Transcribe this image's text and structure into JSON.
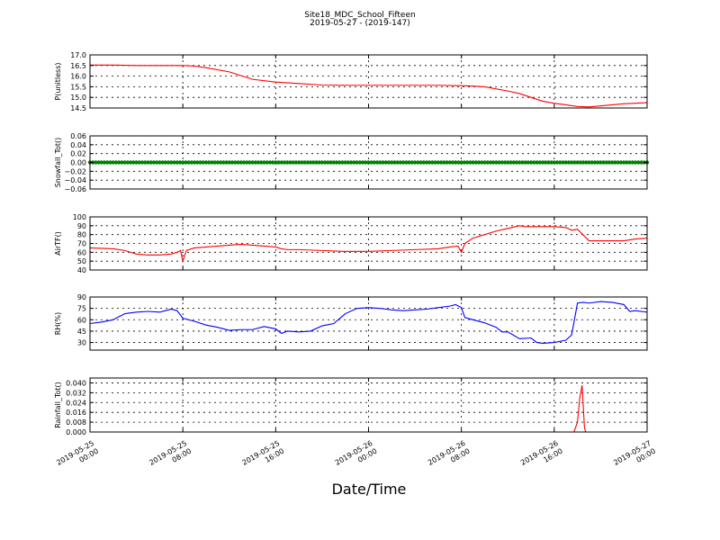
{
  "figure": {
    "title": "Site18_MDC_School_Fifteen",
    "subtitle": "2019-05-27 - (2019-147)",
    "xlabel": "Date/Time",
    "x_ticks": [
      "2019-05-25\n00:00",
      "2019-05-25\n08:00",
      "2019-05-25\n16:00",
      "2019-05-26\n00:00",
      "2019-05-26\n08:00",
      "2019-05-26\n16:00",
      "2019-05-27\n00:00"
    ]
  },
  "chart_data": [
    {
      "type": "line",
      "ylabel": "P(unitless)",
      "ylim": [
        14.5,
        17.0
      ],
      "yticks": [
        "14.5",
        "15.0",
        "15.5",
        "16.0",
        "16.5",
        "17.0"
      ],
      "grid": true,
      "color": "#ff0000",
      "x_hours": [
        0,
        2,
        4,
        6,
        8,
        9,
        10,
        12,
        14,
        16,
        18,
        20,
        22,
        24,
        30,
        32,
        33,
        34,
        36,
        37,
        38,
        39,
        40,
        41,
        42,
        43,
        44,
        45,
        46,
        48
      ],
      "values": [
        16.52,
        16.52,
        16.5,
        16.5,
        16.5,
        16.47,
        16.4,
        16.2,
        15.85,
        15.72,
        15.65,
        15.58,
        15.57,
        15.57,
        15.57,
        15.55,
        15.53,
        15.5,
        15.3,
        15.18,
        15.0,
        14.82,
        14.72,
        14.65,
        14.57,
        14.55,
        14.6,
        14.65,
        14.7,
        14.75
      ]
    },
    {
      "type": "scatter",
      "ylabel": "Snowfall_Tot()",
      "ylim": [
        -0.06,
        0.06
      ],
      "yticks": [
        "−0.06",
        "−0.04",
        "−0.02",
        "0.00",
        "0.02",
        "0.04",
        "0.06"
      ],
      "grid": true,
      "color": "#008000",
      "x_range_hours": [
        0,
        48
      ],
      "constant_value": 0.0
    },
    {
      "type": "line",
      "ylabel": "AirTF()",
      "ylim": [
        40,
        100
      ],
      "yticks": [
        "40",
        "50",
        "60",
        "70",
        "80",
        "90",
        "100"
      ],
      "grid": true,
      "color": "#ff0000",
      "x_hours": [
        0,
        2,
        3,
        4,
        5,
        6,
        7,
        7.5,
        7.8,
        8,
        8.3,
        9,
        10,
        11,
        12,
        13,
        14,
        15,
        16,
        16.5,
        17,
        18,
        20,
        22,
        24,
        26,
        28,
        30,
        31,
        31.7,
        32,
        32.3,
        33,
        34,
        35,
        36,
        37,
        37.5,
        38,
        39,
        40,
        41,
        41.5,
        42,
        43,
        44,
        45,
        46,
        47,
        48
      ],
      "values": [
        65,
        64,
        62,
        58,
        57,
        57,
        58,
        60,
        62,
        50,
        62,
        65,
        66,
        67,
        68,
        69,
        68,
        67,
        66,
        64,
        63,
        63,
        62,
        61,
        61,
        62,
        63,
        64,
        66,
        67,
        60,
        70,
        76,
        80,
        84,
        87,
        90,
        89,
        89,
        89,
        89,
        88,
        85,
        86,
        73,
        73,
        73,
        73,
        75,
        76
      ]
    },
    {
      "type": "line",
      "ylabel": "RH(%)",
      "ylim": [
        20,
        90
      ],
      "yticks": [
        "30",
        "45",
        "60",
        "75",
        "90"
      ],
      "grid": true,
      "color": "#0000ff",
      "x_hours": [
        0,
        1,
        2,
        3,
        4,
        5,
        6,
        6.5,
        7,
        7.5,
        8,
        9,
        10,
        11,
        12,
        13,
        14,
        15,
        16,
        16.5,
        17,
        18,
        19,
        20,
        21,
        22,
        23,
        24,
        25,
        26,
        27,
        28,
        29,
        30,
        31,
        31.5,
        32,
        32.3,
        33,
        34,
        35,
        35.5,
        36,
        37,
        38,
        38.5,
        39,
        40,
        41,
        41.5,
        42,
        42.5,
        43,
        44,
        45,
        46,
        46.5,
        47,
        48
      ],
      "values": [
        55,
        57,
        60,
        68,
        70,
        71,
        70,
        72,
        74,
        72,
        62,
        58,
        53,
        50,
        46,
        47,
        47,
        51,
        48,
        42,
        45,
        44,
        45,
        52,
        55,
        68,
        75,
        76,
        75,
        73,
        72,
        73,
        74,
        76,
        78,
        80,
        76,
        63,
        60,
        56,
        50,
        44,
        44,
        35,
        36,
        30,
        29,
        30,
        33,
        40,
        82,
        83,
        82,
        84,
        83,
        80,
        71,
        72,
        70
      ]
    },
    {
      "type": "line",
      "ylabel": "Rainfall_Tot()",
      "ylim": [
        0,
        0.044
      ],
      "yticks": [
        "0.000",
        "0.008",
        "0.016",
        "0.024",
        "0.032",
        "0.040"
      ],
      "grid": true,
      "color": "#ff0000",
      "x_hours": [
        0,
        41.7,
        42.0,
        42.2,
        42.4,
        42.6,
        42.7,
        48
      ],
      "values": [
        0,
        0,
        0.008,
        0.028,
        0.038,
        0.004,
        0,
        0
      ]
    }
  ]
}
